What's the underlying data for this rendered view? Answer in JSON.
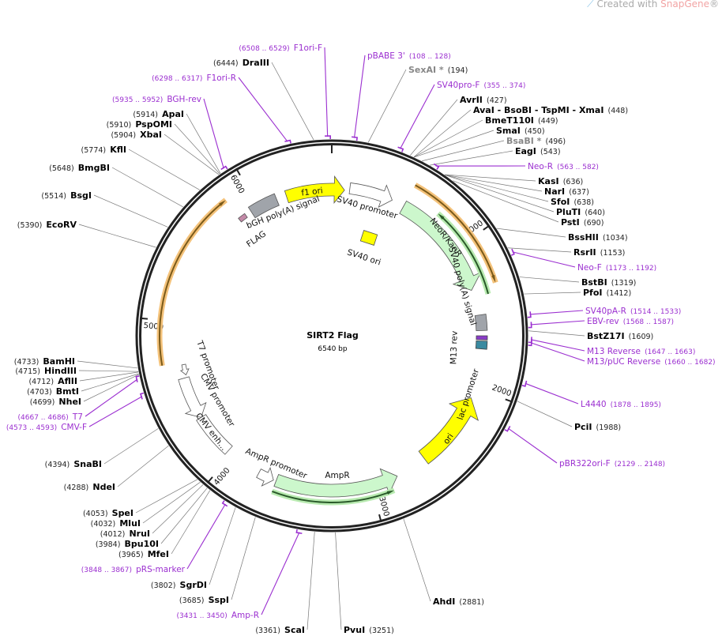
{
  "watermark": {
    "prefix": "Created with ",
    "brand": "SnapGene",
    "suffix": "®"
  },
  "map": {
    "title": "SIRT2 Flag",
    "length": "6540 bp"
  },
  "colors": {
    "primer": "#9b2fd0",
    "backbone": "#222222",
    "orf_orange": "#f4c27a",
    "orf_green": "#b8eab0",
    "feature_yellow": "#ffff00",
    "feature_green": "#ccf7cc",
    "feature_gray": "#a0a4aa"
  },
  "ticks": [
    "1000",
    "2000",
    "3000",
    "4000",
    "5000",
    "6000"
  ],
  "features": {
    "f1_ori": "f1 ori",
    "bgh": "bGH poly(A) signal",
    "sv40_promoter": "SV40 promoter",
    "flag": "FLAG",
    "sv40_ori": "SV40 ori",
    "neor": "NeoR/KanR",
    "sv40_polya": "SV40 poly(A) signal",
    "m13_rev": "M13 rev",
    "lac_promoter": "lac promoter",
    "ori": "ori",
    "ampr": "AmpR",
    "ampr_promoter": "AmpR promoter",
    "cmv_enh": "CMV enh...",
    "cmv_promoter": "CMV promoter",
    "t7_promoter": "T7 promoter"
  },
  "sites": [
    {
      "name": "SexAI *",
      "pos": "194",
      "bp": 194,
      "nonunique": true
    },
    {
      "name": "AvrII",
      "pos": "427",
      "bp": 427
    },
    {
      "name": "AvaI  - BsoBI  - TspMI  - XmaI",
      "pos": "448",
      "bp": 448
    },
    {
      "name": "BmeT110I",
      "pos": "449",
      "bp": 449
    },
    {
      "name": "SmaI",
      "pos": "450",
      "bp": 450
    },
    {
      "name": "BsaBI *",
      "pos": "496",
      "bp": 496,
      "nonunique": true
    },
    {
      "name": "EagI",
      "pos": "543",
      "bp": 543
    },
    {
      "name": "KasI",
      "pos": "636",
      "bp": 636
    },
    {
      "name": "NarI",
      "pos": "637",
      "bp": 637
    },
    {
      "name": "SfoI",
      "pos": "638",
      "bp": 638
    },
    {
      "name": "PluTI",
      "pos": "640",
      "bp": 640
    },
    {
      "name": "PstI",
      "pos": "690",
      "bp": 690
    },
    {
      "name": "BssHII",
      "pos": "1034",
      "bp": 1034
    },
    {
      "name": "RsrII",
      "pos": "1153",
      "bp": 1153
    },
    {
      "name": "BstBI",
      "pos": "1319",
      "bp": 1319
    },
    {
      "name": "PfoI",
      "pos": "1412",
      "bp": 1412
    },
    {
      "name": "BstZ17I",
      "pos": "1609",
      "bp": 1609
    },
    {
      "name": "PciI",
      "pos": "1988",
      "bp": 1988
    },
    {
      "name": "AhdI",
      "pos": "2881",
      "bp": 2881
    },
    {
      "name": "PvuI",
      "pos": "3251",
      "bp": 3251
    },
    {
      "name": "ScaI",
      "pos": "3361",
      "bp": 3361
    },
    {
      "name": "SspI",
      "pos": "3685",
      "bp": 3685
    },
    {
      "name": "SgrDI",
      "pos": "3802",
      "bp": 3802
    },
    {
      "name": "MfeI",
      "pos": "3965",
      "bp": 3965
    },
    {
      "name": "Bpu10I",
      "pos": "3984",
      "bp": 3984
    },
    {
      "name": "NruI",
      "pos": "4012",
      "bp": 4012
    },
    {
      "name": "MluI",
      "pos": "4032",
      "bp": 4032
    },
    {
      "name": "SpeI",
      "pos": "4053",
      "bp": 4053
    },
    {
      "name": "NdeI",
      "pos": "4288",
      "bp": 4288
    },
    {
      "name": "SnaBI",
      "pos": "4394",
      "bp": 4394
    },
    {
      "name": "NheI",
      "pos": "4699",
      "bp": 4699
    },
    {
      "name": "BmtI",
      "pos": "4703",
      "bp": 4703
    },
    {
      "name": "AflII",
      "pos": "4712",
      "bp": 4712
    },
    {
      "name": "HindIII",
      "pos": "4715",
      "bp": 4715
    },
    {
      "name": "BamHI",
      "pos": "4733",
      "bp": 4733
    },
    {
      "name": "EcoRV",
      "pos": "5390",
      "bp": 5390
    },
    {
      "name": "BsgI",
      "pos": "5514",
      "bp": 5514
    },
    {
      "name": "BmgBI",
      "pos": "5648",
      "bp": 5648
    },
    {
      "name": "KflI",
      "pos": "5774",
      "bp": 5774
    },
    {
      "name": "XbaI",
      "pos": "5904",
      "bp": 5904
    },
    {
      "name": "PspOMI",
      "pos": "5910",
      "bp": 5910
    },
    {
      "name": "ApaI",
      "pos": "5914",
      "bp": 5914
    },
    {
      "name": "DraIII",
      "pos": "6444",
      "bp": 6444
    }
  ],
  "primers": [
    {
      "name": "pBABE 3'",
      "range": "108 .. 128",
      "bp": 118
    },
    {
      "name": "SV40pro-F",
      "range": "355 .. 374",
      "bp": 365
    },
    {
      "name": "Neo-R",
      "range": "563 .. 582",
      "bp": 572
    },
    {
      "name": "Neo-F",
      "range": "1173 .. 1192",
      "bp": 1182
    },
    {
      "name": "SV40pA-R",
      "range": "1514 .. 1533",
      "bp": 1523
    },
    {
      "name": "EBV-rev",
      "range": "1568 .. 1587",
      "bp": 1577
    },
    {
      "name": "M13 Reverse",
      "range": "1647 .. 1663",
      "bp": 1655
    },
    {
      "name": "M13/pUC Reverse",
      "range": "1660 .. 1682",
      "bp": 1671
    },
    {
      "name": "L4440",
      "range": "1878 .. 1895",
      "bp": 1886
    },
    {
      "name": "pBR322ori-F",
      "range": "2129 .. 2148",
      "bp": 2138
    },
    {
      "name": "F1ori-F",
      "range": "6508 .. 6529",
      "bp": 6518
    },
    {
      "name": "F1ori-R",
      "range": "6298 .. 6317",
      "bp": 6307
    },
    {
      "name": "BGH-rev",
      "range": "5935 .. 5952",
      "bp": 5943
    },
    {
      "name": "T7",
      "range": "4667 .. 4686",
      "bp": 4676
    },
    {
      "name": "CMV-F",
      "range": "4573 .. 4593",
      "bp": 4583
    },
    {
      "name": "pRS-marker",
      "range": "3848 .. 3867",
      "bp": 3857
    },
    {
      "name": "Amp-R",
      "range": "3431 .. 3450",
      "bp": 3440
    }
  ]
}
